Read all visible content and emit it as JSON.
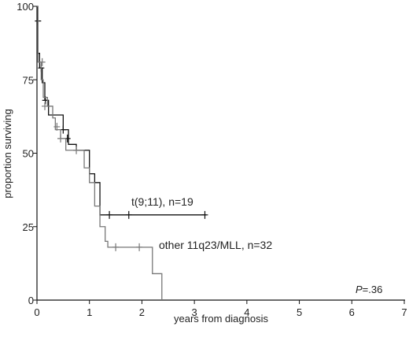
{
  "chart_data": {
    "type": "line",
    "subtype": "kaplan-meier",
    "title": "",
    "xlabel": "years from diagnosis",
    "ylabel": "proportion surviving",
    "xlim": [
      0,
      7
    ],
    "ylim": [
      0,
      100
    ],
    "xticks": [
      "0",
      "1",
      "2",
      "3",
      "4",
      "5",
      "6",
      "7"
    ],
    "yticks": [
      "0",
      "25",
      "50",
      "75",
      "100"
    ],
    "grid": false,
    "annotations": {
      "p_prefix": "P",
      "p_value": "=.36"
    },
    "series": [
      {
        "name": "t(9;11), n=19",
        "color": "#111111",
        "steps": [
          [
            0,
            100
          ],
          [
            0.01,
            95
          ],
          [
            0.02,
            84
          ],
          [
            0.05,
            79
          ],
          [
            0.1,
            74
          ],
          [
            0.15,
            68
          ],
          [
            0.22,
            63
          ],
          [
            0.5,
            58
          ],
          [
            0.6,
            53
          ],
          [
            0.75,
            51
          ],
          [
            1.0,
            43
          ],
          [
            1.1,
            40
          ],
          [
            1.2,
            29
          ],
          [
            3.23,
            29
          ]
        ],
        "censored": [
          [
            0.02,
            95
          ],
          [
            0.08,
            79
          ],
          [
            0.16,
            68
          ],
          [
            0.5,
            58
          ],
          [
            0.58,
            55
          ],
          [
            1.38,
            29
          ],
          [
            1.75,
            29
          ],
          [
            3.2,
            29
          ]
        ]
      },
      {
        "name": "other 11q23/MLL, n=32",
        "color": "#777777",
        "steps": [
          [
            0,
            100
          ],
          [
            0.02,
            81
          ],
          [
            0.08,
            75
          ],
          [
            0.12,
            69
          ],
          [
            0.2,
            66
          ],
          [
            0.3,
            62
          ],
          [
            0.35,
            58
          ],
          [
            0.45,
            55
          ],
          [
            0.55,
            51
          ],
          [
            0.9,
            45
          ],
          [
            1.0,
            40
          ],
          [
            1.1,
            32
          ],
          [
            1.2,
            25
          ],
          [
            1.3,
            20
          ],
          [
            1.35,
            18
          ],
          [
            2.2,
            9
          ],
          [
            2.38,
            0
          ]
        ],
        "censored": [
          [
            0.1,
            81
          ],
          [
            0.15,
            66
          ],
          [
            0.38,
            59
          ],
          [
            0.45,
            55
          ],
          [
            0.75,
            51
          ],
          [
            1.5,
            18
          ],
          [
            1.95,
            18
          ]
        ]
      }
    ]
  }
}
